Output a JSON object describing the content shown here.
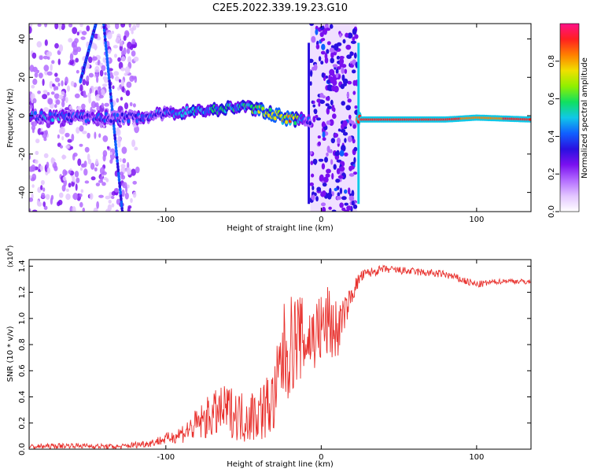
{
  "figure_title": "C2E5.2022.339.19.23.G10",
  "colors": {
    "snr_line": "#e8302c",
    "colormap": [
      "#ffffff",
      "#e3c6ff",
      "#b36bff",
      "#7a10f0",
      "#2a10e0",
      "#1060ff",
      "#10c8e8",
      "#10e060",
      "#90f000",
      "#f0e000",
      "#ff8000",
      "#ff2020",
      "#ff1088"
    ]
  },
  "chart_data": [
    {
      "type": "heatmap",
      "title": "C2E5.2022.339.19.23.G10",
      "xlabel": "Height of straight line (km)",
      "ylabel": "Frequency (Hz)",
      "xlim": [
        -188,
        135
      ],
      "ylim": [
        -50,
        48
      ],
      "x_ticks": [
        "-100",
        "0",
        "100"
      ],
      "x_tick_values": [
        -100,
        0,
        100
      ],
      "y_ticks": [
        "40",
        "20",
        "0",
        "-20",
        "-40"
      ],
      "y_tick_values": [
        40,
        20,
        0,
        -20,
        -40
      ],
      "colorbar": {
        "label": "Normalized spectral amplitude",
        "range": [
          0,
          1
        ],
        "ticks": [
          "0.0",
          "0.2",
          "0.4",
          "0.6",
          "0.8"
        ],
        "tick_values": [
          0,
          0.2,
          0.4,
          0.6,
          0.8
        ]
      },
      "ridge": {
        "x": [
          -188,
          -150,
          -120,
          -90,
          -70,
          -50,
          -35,
          -20,
          -10,
          25,
          80,
          100,
          135
        ],
        "freq_hz": [
          0,
          -1,
          -1,
          2,
          3,
          5,
          2,
          -2,
          -2,
          -2,
          -2,
          -1,
          -2
        ],
        "amplitude": [
          0.4,
          0.35,
          0.35,
          0.45,
          0.5,
          0.5,
          0.7,
          0.8,
          0.3,
          0.95,
          0.9,
          0.85,
          0.9
        ]
      },
      "broadband_band": {
        "x_range": [
          -7,
          23
        ],
        "freq_range": [
          -50,
          48
        ],
        "amplitude": 0.15
      }
    },
    {
      "type": "line",
      "title": "",
      "xlabel": "Height of straight line (km)",
      "ylabel": "SNR (10 * v/v)",
      "y_multiplier": "(x10^4)",
      "y_multiplier_base": "(x10",
      "y_multiplier_exp": "4",
      "y_multiplier_close": ")",
      "xlim": [
        -188,
        135
      ],
      "ylim": [
        0,
        1.45
      ],
      "x_ticks": [
        "-100",
        "0",
        "100"
      ],
      "x_tick_values": [
        -100,
        0,
        100
      ],
      "y_ticks": [
        "0.0",
        "0.2",
        "0.4",
        "0.6",
        "0.8",
        "1.0",
        "1.2",
        "1.4"
      ],
      "y_tick_values": [
        0,
        0.2,
        0.4,
        0.6,
        0.8,
        1.0,
        1.2,
        1.4
      ],
      "series": [
        {
          "x": [
            -188,
            -160,
            -130,
            -110,
            -95,
            -85,
            -70,
            -60,
            -50,
            -40,
            -30,
            -25,
            -20,
            -15,
            -10,
            -5,
            0,
            5,
            10,
            15,
            20,
            25,
            30,
            40,
            50,
            60,
            70,
            80,
            90,
            100,
            110,
            120,
            135
          ],
          "y": [
            0.02,
            0.03,
            0.02,
            0.05,
            0.1,
            0.16,
            0.28,
            0.32,
            0.26,
            0.3,
            0.4,
            0.75,
            0.82,
            0.9,
            0.85,
            0.9,
            0.95,
            1.0,
            0.92,
            1.05,
            1.2,
            1.32,
            1.35,
            1.38,
            1.37,
            1.36,
            1.35,
            1.34,
            1.3,
            1.26,
            1.28,
            1.29,
            1.28
          ],
          "noise": [
            0.02,
            0.02,
            0.02,
            0.03,
            0.05,
            0.1,
            0.18,
            0.2,
            0.2,
            0.22,
            0.28,
            0.4,
            0.4,
            0.35,
            0.3,
            0.28,
            0.3,
            0.3,
            0.25,
            0.12,
            0.08,
            0.05,
            0.04,
            0.03,
            0.03,
            0.03,
            0.03,
            0.03,
            0.03,
            0.03,
            0.02,
            0.02,
            0.02
          ]
        }
      ]
    }
  ]
}
